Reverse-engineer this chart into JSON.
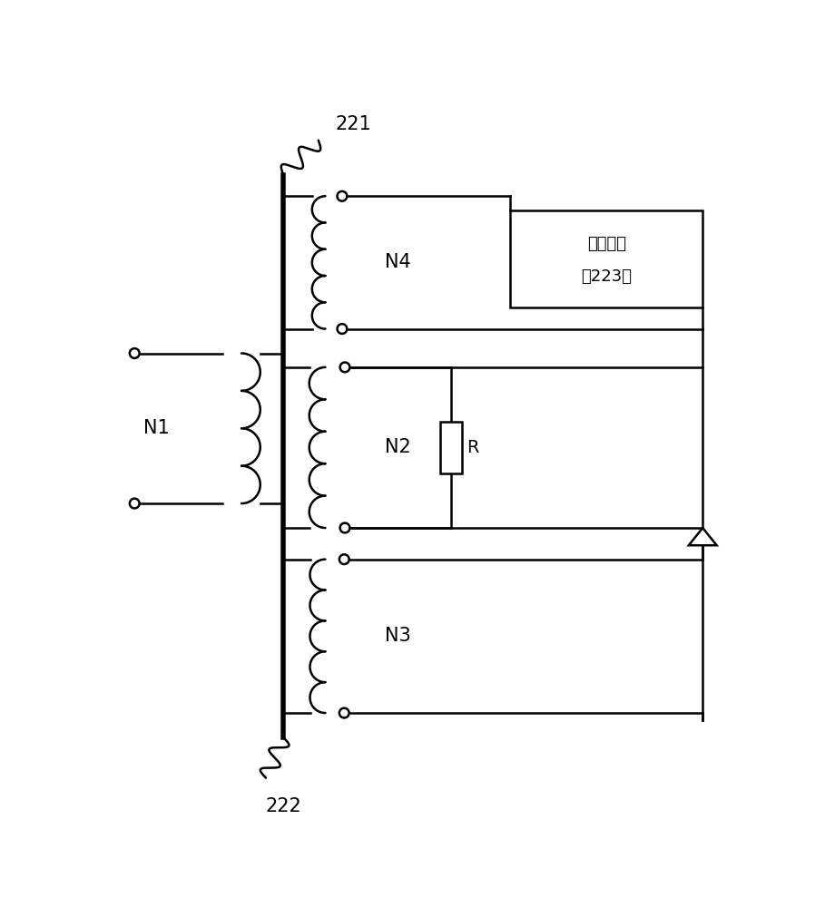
{
  "bg_color": "#ffffff",
  "line_color": "#000000",
  "line_width": 1.8,
  "fig_width": 9.09,
  "fig_height": 10.0,
  "label_221": "221",
  "label_222": "222",
  "label_N1": "N1",
  "label_N2": "N2",
  "label_N3": "N3",
  "label_N4": "N4",
  "label_R": "R",
  "box_label_line1": "补偿电路",
  "box_label_line2": "（223）"
}
